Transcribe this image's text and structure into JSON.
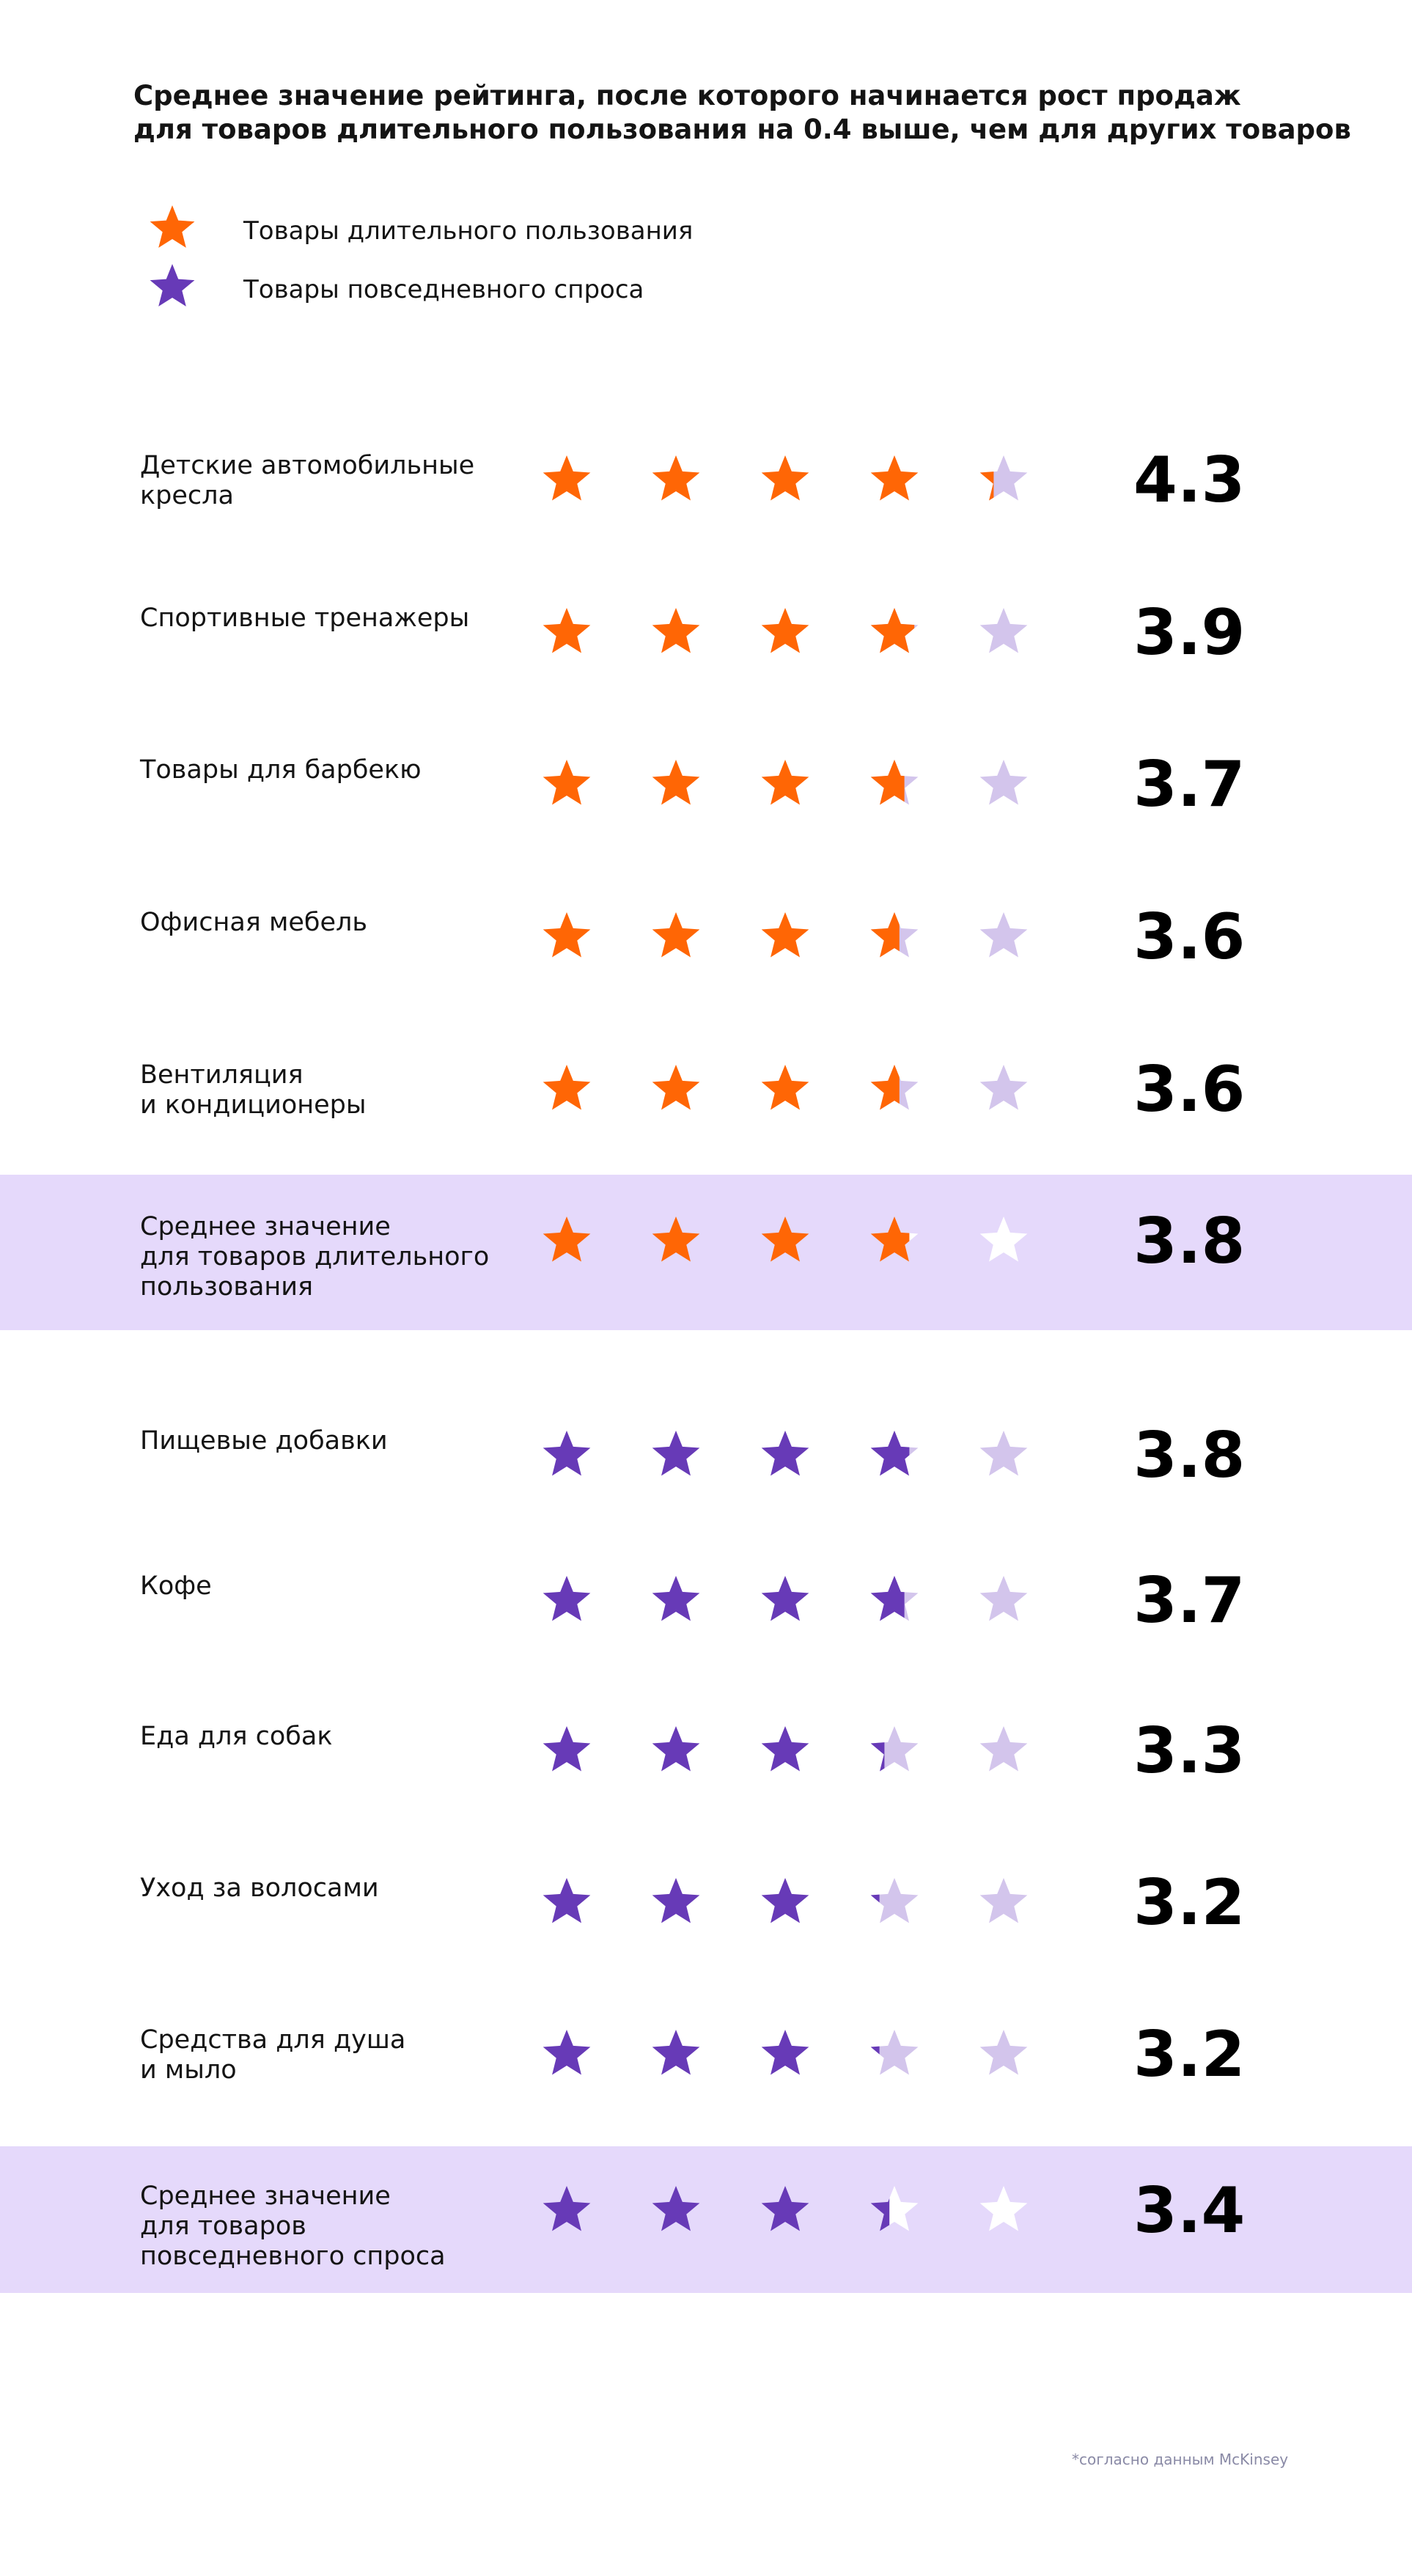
{
  "colors": {
    "durable": "#ff6605",
    "everyday": "#673ab7",
    "empty": "#d3c5ec",
    "empty_avg": "#ffffff",
    "band": "#e5d9fb"
  },
  "title": {
    "line1": "Среднее значение рейтинга, после которого начинается рост продаж",
    "line2": "для товаров длительного пользования на 0.4 выше, чем для других товаров"
  },
  "legend": [
    {
      "label": "Товары длительного пользования",
      "icon": "star-icon",
      "color": "#ff6605"
    },
    {
      "label": "Товары повседневного спроса",
      "icon": "star-icon",
      "color": "#673ab7"
    }
  ],
  "chart_data": {
    "type": "table",
    "title": "Среднее значение рейтинга, после которого начинается рост продаж для товаров длительного пользования на 0.4 выше, чем для других товаров",
    "scale_max": 5,
    "rows": [
      {
        "category": "Детские автомобильные кресла",
        "lines": [
          "Детские автомобильные",
          "кресла"
        ],
        "value": "4.3",
        "rating": 4.3,
        "group": "durable",
        "average": false
      },
      {
        "category": "Спортивные тренажеры",
        "lines": [
          "Спортивные тренажеры"
        ],
        "value": "3.9",
        "rating": 3.9,
        "group": "durable",
        "average": false
      },
      {
        "category": "Товары для барбекю",
        "lines": [
          "Товары для барбекю"
        ],
        "value": "3.7",
        "rating": 3.7,
        "group": "durable",
        "average": false
      },
      {
        "category": "Офисная мебель",
        "lines": [
          "Офисная мебель"
        ],
        "value": "3.6",
        "rating": 3.6,
        "group": "durable",
        "average": false
      },
      {
        "category": "Вентиляция и кондиционеры",
        "lines": [
          "Вентиляция",
          "и кондиционеры"
        ],
        "value": "3.6",
        "rating": 3.6,
        "group": "durable",
        "average": false
      },
      {
        "category": "Среднее значение для товаров длительного пользования",
        "lines": [
          "Среднее значение",
          "для товаров длительного",
          "пользования"
        ],
        "value": "3.8",
        "rating": 3.8,
        "group": "durable",
        "average": true
      },
      {
        "category": "Пищевые добавки",
        "lines": [
          "Пищевые добавки"
        ],
        "value": "3.8",
        "rating": 3.8,
        "group": "everyday",
        "average": false
      },
      {
        "category": "Кофе",
        "lines": [
          "Кофе"
        ],
        "value": "3.7",
        "rating": 3.7,
        "group": "everyday",
        "average": false
      },
      {
        "category": "Еда для собак",
        "lines": [
          "Еда для собак"
        ],
        "value": "3.3",
        "rating": 3.3,
        "group": "everyday",
        "average": false
      },
      {
        "category": "Уход за волосами",
        "lines": [
          "Уход за волосами"
        ],
        "value": "3.2",
        "rating": 3.2,
        "group": "everyday",
        "average": false
      },
      {
        "category": "Средства для душа и мыло",
        "lines": [
          "Средства для душа",
          "и мыло"
        ],
        "value": "3.2",
        "rating": 3.2,
        "group": "everyday",
        "average": false
      },
      {
        "category": "Среднее значение для товаров повседневного спроса",
        "lines": [
          "Среднее значение",
          "для товаров",
          "повседневного спроса"
        ],
        "value": "3.4",
        "rating": 3.4,
        "group": "everyday",
        "average": true
      }
    ]
  },
  "footnote": "*согласно данным McKinsey"
}
